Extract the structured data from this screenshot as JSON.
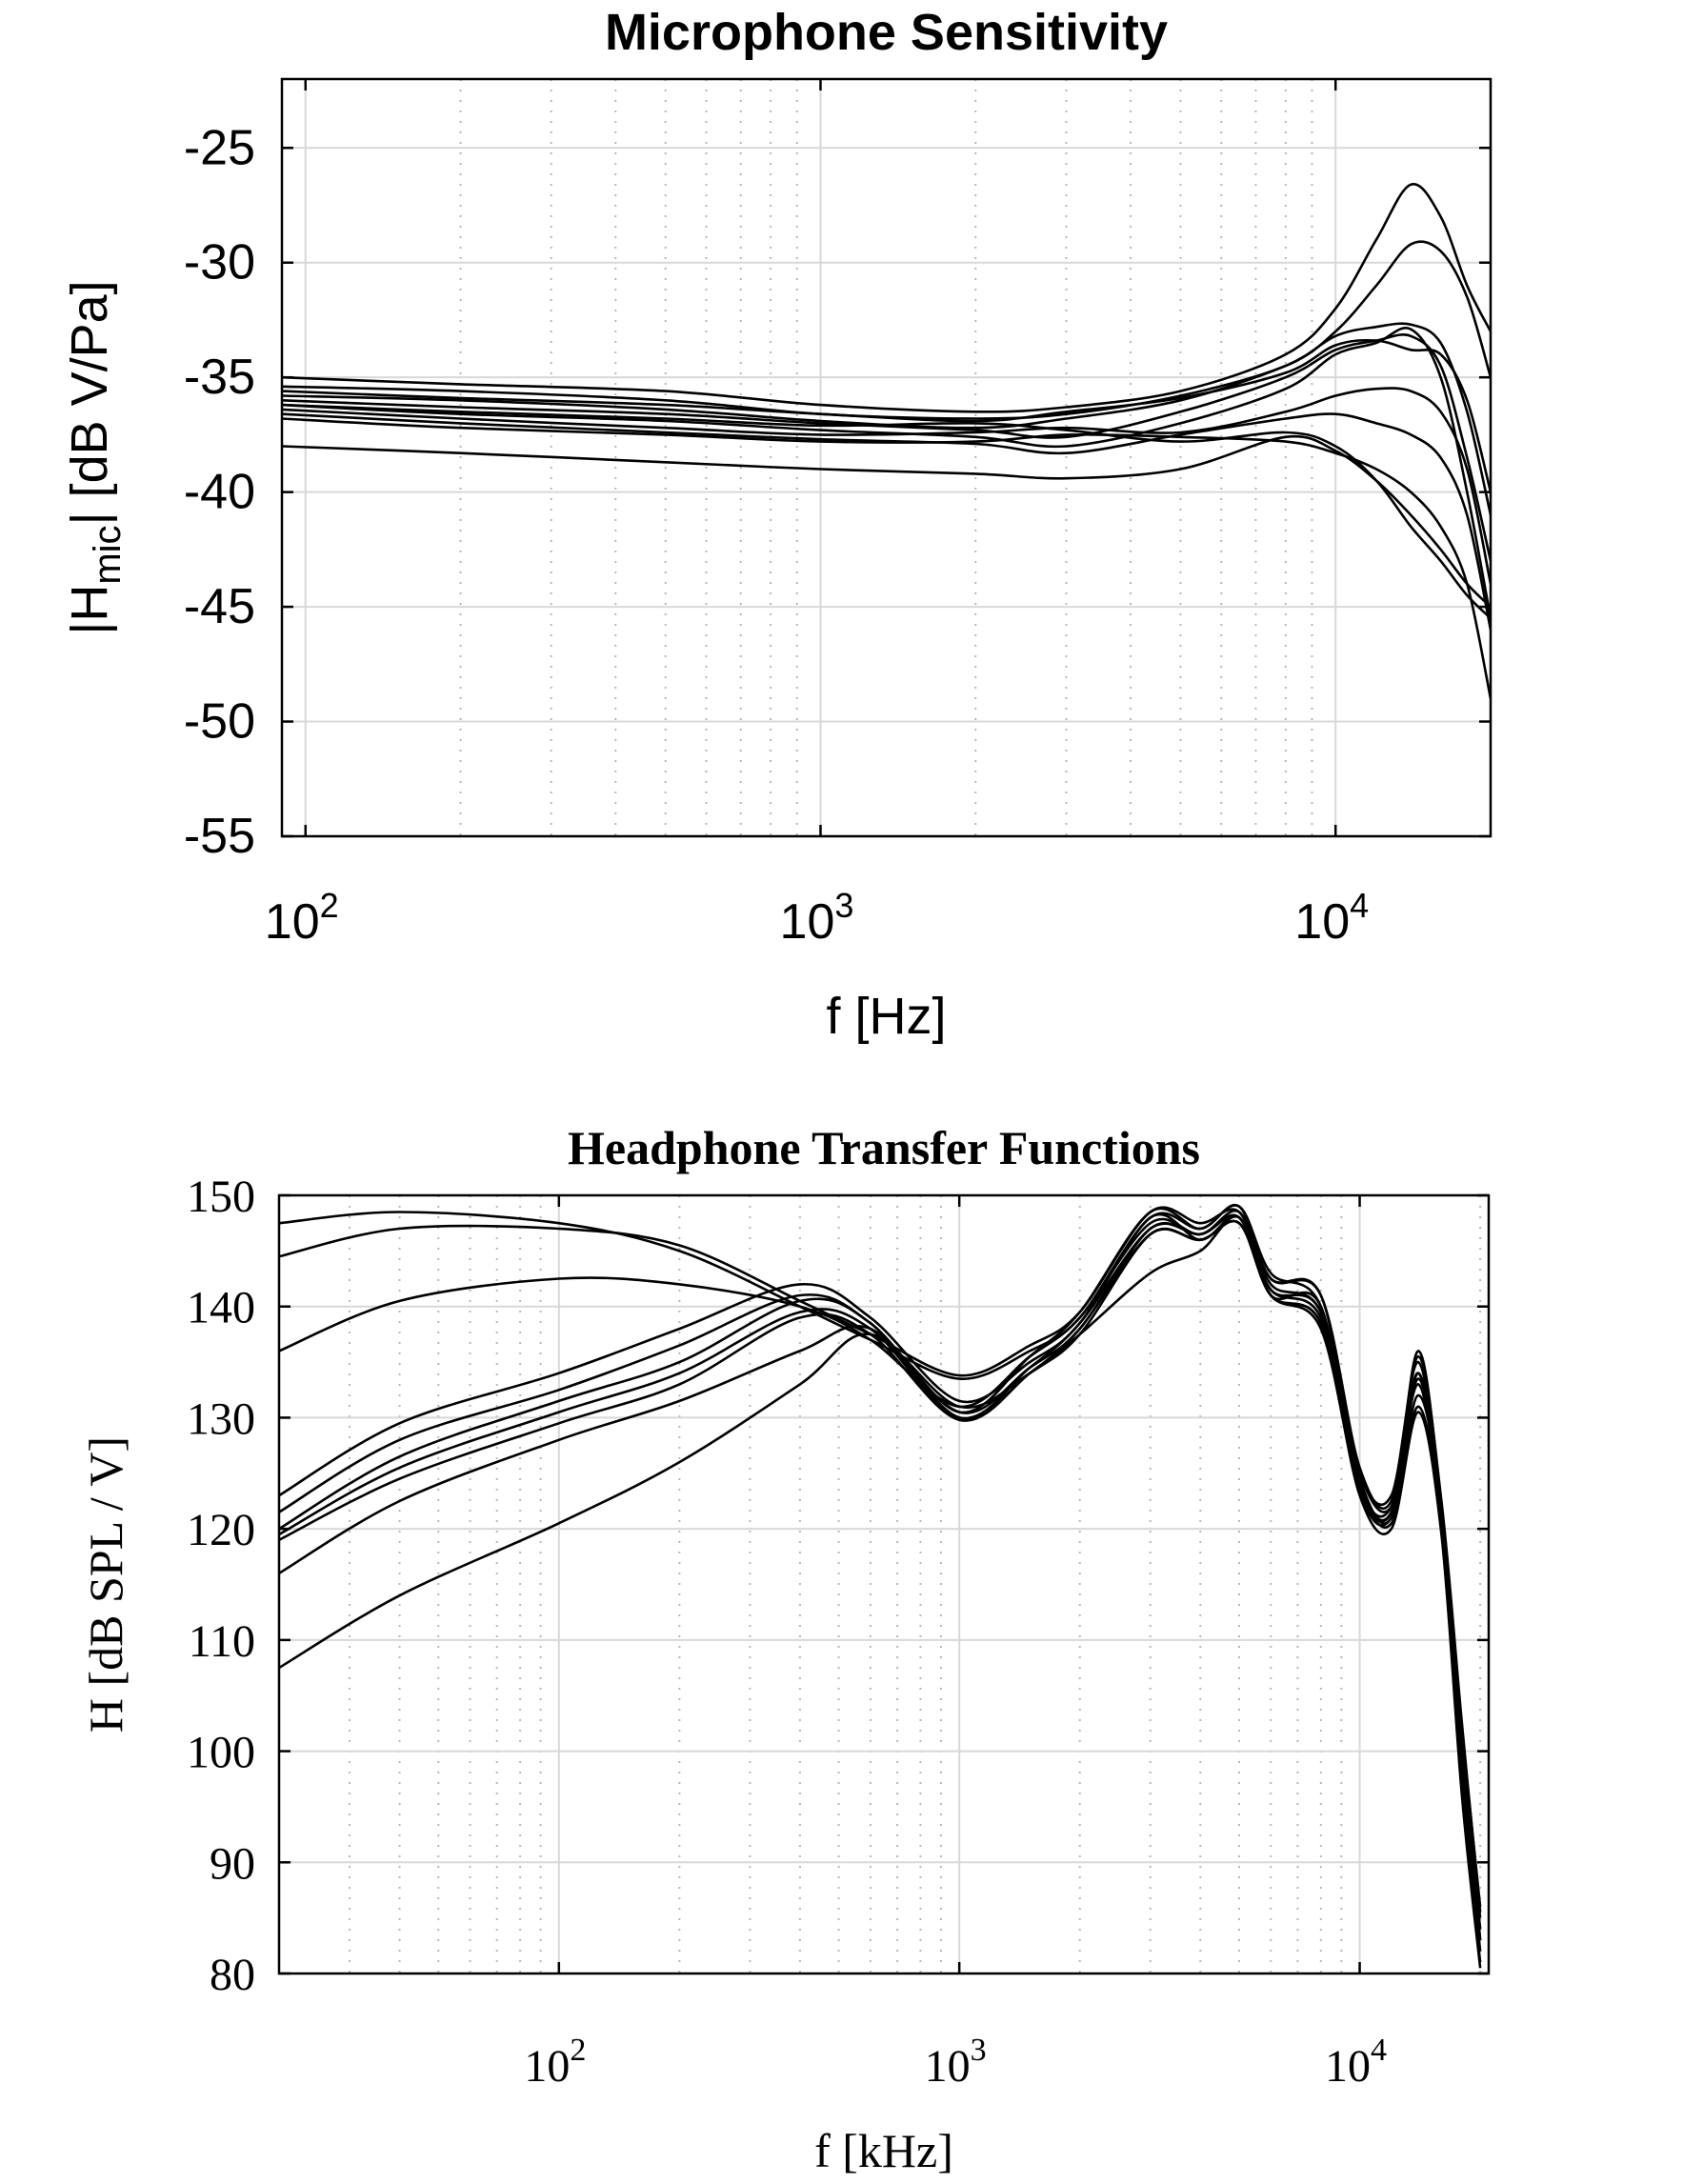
{
  "chart_data": [
    {
      "type": "line",
      "title": "Microphone Sensitivity",
      "xlabel": "f [Hz]",
      "ylabel_main": "|H",
      "ylabel_sub": "mic",
      "ylabel_rest": "| [dB V/Pa]",
      "xscale": "log",
      "xlim": [
        90,
        20000
      ],
      "ylim": [
        -55,
        -22
      ],
      "grid": true,
      "yticks": [
        -55,
        -50,
        -45,
        -40,
        -35,
        -30,
        -25
      ],
      "ytick_labels": [
        "-55",
        "-50",
        "-45",
        "-40",
        "-35",
        "-30",
        "-25"
      ],
      "xticks": [
        100,
        1000,
        10000
      ],
      "xtick_base": "10",
      "xtick_exponents": [
        "2",
        "3",
        "4"
      ],
      "series": [
        {
          "x": [
            90,
            200,
            500,
            1000,
            2000,
            3000,
            5000,
            8000,
            10000,
            12000,
            14000,
            16000,
            18000,
            20000
          ],
          "y": [
            -35.0,
            -35.3,
            -35.6,
            -36.2,
            -36.5,
            -36.3,
            -35.6,
            -34.0,
            -32.0,
            -29.0,
            -26.6,
            -28.0,
            -31.0,
            -33.0
          ]
        },
        {
          "x": [
            90,
            200,
            500,
            1000,
            2000,
            3000,
            5000,
            8000,
            10000,
            12000,
            14000,
            16000,
            18000,
            20000
          ],
          "y": [
            -35.4,
            -35.6,
            -36.0,
            -36.6,
            -36.8,
            -36.6,
            -35.8,
            -34.5,
            -33.0,
            -31.0,
            -29.2,
            -29.5,
            -31.5,
            -35.0
          ]
        },
        {
          "x": [
            90,
            200,
            500,
            1000,
            2000,
            3000,
            5000,
            8000,
            10000,
            12000,
            14000,
            16000,
            18000,
            20000
          ],
          "y": [
            -35.8,
            -36.0,
            -36.4,
            -36.9,
            -37.2,
            -36.8,
            -36.0,
            -34.5,
            -33.2,
            -32.8,
            -32.7,
            -33.5,
            -36.5,
            -41.0
          ]
        },
        {
          "x": [
            90,
            200,
            500,
            1000,
            2000,
            3000,
            5000,
            8000,
            10000,
            12000,
            14000,
            16000,
            18000,
            20000
          ],
          "y": [
            -36.0,
            -36.3,
            -36.6,
            -37.0,
            -37.3,
            -37.6,
            -36.5,
            -35.0,
            -33.8,
            -33.4,
            -33.2,
            -34.5,
            -38.5,
            -43.0
          ]
        },
        {
          "x": [
            90,
            200,
            500,
            1000,
            2000,
            3000,
            5000,
            8000,
            10000,
            12000,
            14000,
            16000,
            18000,
            20000
          ],
          "y": [
            -36.2,
            -36.6,
            -36.9,
            -37.3,
            -37.6,
            -38.0,
            -37.0,
            -35.5,
            -34.0,
            -33.5,
            -32.9,
            -35.0,
            -40.0,
            -45.5
          ]
        },
        {
          "x": [
            90,
            200,
            500,
            1000,
            2000,
            3000,
            5000,
            8000,
            10000,
            12000,
            14000,
            16000,
            18000,
            20000
          ],
          "y": [
            -36.4,
            -36.8,
            -37.2,
            -37.5,
            -37.4,
            -37.2,
            -37.4,
            -36.5,
            -35.8,
            -35.5,
            -35.6,
            -36.5,
            -39.0,
            -44.0
          ]
        },
        {
          "x": [
            90,
            200,
            500,
            1000,
            2000,
            3000,
            5000,
            8000,
            10000,
            12000,
            14000,
            16000,
            18000,
            20000
          ],
          "y": [
            -36.6,
            -37.0,
            -37.4,
            -37.7,
            -37.9,
            -38.3,
            -37.5,
            -36.8,
            -36.6,
            -37.0,
            -37.5,
            -38.5,
            -41.0,
            -46.0
          ]
        },
        {
          "x": [
            90,
            200,
            500,
            1000,
            2000,
            3000,
            5000,
            8000,
            10000,
            12000,
            14000,
            16000,
            18000,
            20000
          ],
          "y": [
            -36.8,
            -37.2,
            -37.5,
            -37.8,
            -37.8,
            -37.5,
            -37.6,
            -37.8,
            -38.3,
            -39.0,
            -40.0,
            -41.5,
            -44.0,
            -49.0
          ]
        },
        {
          "x": [
            90,
            200,
            500,
            1000,
            2000,
            3000,
            5000,
            8000,
            10000,
            12000,
            14000,
            16000,
            18000,
            20000
          ],
          "y": [
            -36.2,
            -36.5,
            -36.8,
            -37.1,
            -37.0,
            -37.3,
            -37.8,
            -37.4,
            -38.0,
            -39.5,
            -41.5,
            -43.0,
            -44.5,
            -45.5
          ]
        },
        {
          "x": [
            90,
            200,
            500,
            1000,
            2000,
            3000,
            5000,
            8000,
            10000,
            12000,
            14000,
            16000,
            18000,
            20000
          ],
          "y": [
            -38.0,
            -38.3,
            -38.7,
            -39.0,
            -39.2,
            -39.4,
            -39.0,
            -37.6,
            -38.2,
            -39.5,
            -41.0,
            -42.5,
            -44.0,
            -45.0
          ]
        },
        {
          "x": [
            90,
            200,
            500,
            1000,
            2000,
            3000,
            5000,
            8000,
            10000,
            12000,
            14000,
            16000,
            18000,
            20000
          ],
          "y": [
            -35.6,
            -35.9,
            -36.2,
            -36.6,
            -36.9,
            -36.5,
            -35.9,
            -34.8,
            -33.6,
            -33.4,
            -33.8,
            -34.0,
            -36.0,
            -40.0
          ]
        }
      ]
    },
    {
      "type": "line",
      "title": "Headphone Transfer Functions",
      "xlabel": "f [kHz]",
      "ylabel": "H [dB SPL / V]",
      "xscale": "log",
      "xlim": [
        20,
        21000
      ],
      "ylim": [
        80,
        150
      ],
      "grid": true,
      "yticks": [
        80,
        90,
        100,
        110,
        120,
        130,
        140,
        150
      ],
      "ytick_labels": [
        "80",
        "90",
        "100",
        "110",
        "120",
        "130",
        "140",
        "150"
      ],
      "xticks": [
        100,
        1000,
        10000
      ],
      "xtick_base": "10",
      "xtick_exponents": [
        "2",
        "3",
        "4"
      ],
      "series": [
        {
          "x": [
            20,
            40,
            100,
            200,
            400,
            600,
            1000,
            1500,
            2000,
            3000,
            4000,
            5000,
            6000,
            8000,
            10000,
            12000,
            14000,
            16000,
            18000,
            20000
          ],
          "y": [
            147.5,
            148.5,
            147.5,
            145.0,
            140.0,
            137.0,
            133.5,
            136.0,
            139.0,
            148.0,
            147.0,
            149.0,
            143.0,
            140.0,
            124.0,
            122.0,
            134.0,
            120.0,
            100.0,
            85.0
          ]
        },
        {
          "x": [
            20,
            40,
            100,
            200,
            400,
            600,
            1000,
            1500,
            2000,
            3000,
            4000,
            5000,
            6000,
            8000,
            10000,
            12000,
            14000,
            16000,
            18000,
            20000
          ],
          "y": [
            144.5,
            147.0,
            147.0,
            145.5,
            140.5,
            137.5,
            133.8,
            136.5,
            139.5,
            148.5,
            147.5,
            148.5,
            142.0,
            139.5,
            125.0,
            123.0,
            135.0,
            121.0,
            98.0,
            84.0
          ]
        },
        {
          "x": [
            20,
            40,
            100,
            200,
            400,
            600,
            1000,
            1500,
            2000,
            3000,
            4000,
            5000,
            6000,
            8000,
            10000,
            12000,
            14000,
            16000,
            18000,
            20000
          ],
          "y": [
            136.0,
            140.5,
            142.5,
            142.0,
            140.0,
            137.0,
            131.0,
            135.5,
            139.0,
            147.5,
            146.5,
            148.5,
            142.5,
            141.0,
            124.5,
            121.5,
            136.0,
            122.0,
            102.0,
            86.0
          ]
        },
        {
          "x": [
            20,
            40,
            100,
            200,
            400,
            600,
            1000,
            1500,
            2000,
            3000,
            4000,
            5000,
            6000,
            8000,
            10000,
            12000,
            14000,
            16000,
            18000,
            20000
          ],
          "y": [
            123.0,
            129.5,
            134.0,
            138.0,
            142.0,
            139.0,
            131.5,
            135.0,
            138.5,
            148.0,
            146.0,
            148.0,
            141.5,
            139.0,
            125.0,
            122.0,
            133.0,
            120.5,
            101.0,
            83.0
          ]
        },
        {
          "x": [
            20,
            40,
            100,
            200,
            400,
            600,
            1000,
            1500,
            2000,
            3000,
            4000,
            5000,
            6000,
            8000,
            10000,
            12000,
            14000,
            16000,
            18000,
            20000
          ],
          "y": [
            121.5,
            128.0,
            132.5,
            136.5,
            141.0,
            138.5,
            130.5,
            134.5,
            138.0,
            147.0,
            146.5,
            148.0,
            141.0,
            140.0,
            123.5,
            121.0,
            132.0,
            121.5,
            99.0,
            82.0
          ]
        },
        {
          "x": [
            20,
            40,
            100,
            200,
            400,
            600,
            1000,
            1500,
            2000,
            3000,
            4000,
            5000,
            6000,
            8000,
            10000,
            12000,
            14000,
            16000,
            18000,
            20000
          ],
          "y": [
            120.0,
            126.5,
            131.5,
            135.0,
            140.5,
            138.5,
            130.0,
            134.0,
            137.5,
            146.5,
            146.0,
            147.5,
            141.0,
            138.5,
            124.0,
            120.5,
            131.0,
            120.0,
            97.0,
            81.0
          ]
        },
        {
          "x": [
            20,
            40,
            100,
            200,
            400,
            600,
            1000,
            1500,
            2000,
            3000,
            4000,
            5000,
            6000,
            8000,
            10000,
            12000,
            14000,
            16000,
            18000,
            20000
          ],
          "y": [
            119.5,
            125.5,
            130.5,
            134.0,
            139.5,
            138.0,
            130.0,
            134.5,
            138.5,
            147.0,
            146.5,
            148.0,
            141.5,
            139.5,
            124.5,
            121.0,
            133.5,
            121.0,
            100.0,
            83.0
          ]
        },
        {
          "x": [
            20,
            40,
            100,
            200,
            400,
            600,
            1000,
            1500,
            2000,
            3000,
            4000,
            5000,
            6000,
            8000,
            10000,
            12000,
            14000,
            16000,
            18000,
            20000
          ],
          "y": [
            119.0,
            124.5,
            129.5,
            133.0,
            139.0,
            137.5,
            129.8,
            134.0,
            138.0,
            146.5,
            146.0,
            147.5,
            141.0,
            138.0,
            123.0,
            120.0,
            130.5,
            119.5,
            96.0,
            80.5
          ]
        },
        {
          "x": [
            20,
            40,
            100,
            200,
            400,
            600,
            1000,
            1500,
            2000,
            3000,
            4000,
            5000,
            6000,
            8000,
            10000,
            12000,
            14000,
            16000,
            18000,
            20000
          ],
          "y": [
            116.0,
            122.5,
            128.0,
            131.5,
            136.0,
            138.0,
            130.5,
            135.5,
            139.5,
            148.5,
            147.0,
            149.0,
            142.5,
            141.0,
            125.5,
            122.5,
            135.5,
            122.5,
            102.5,
            85.5
          ]
        },
        {
          "x": [
            20,
            40,
            100,
            200,
            400,
            600,
            1000,
            1500,
            2000,
            3000,
            4000,
            5000,
            6000,
            8000,
            10000,
            12000,
            14000,
            16000,
            18000,
            20000
          ],
          "y": [
            107.5,
            114.0,
            120.5,
            126.0,
            133.0,
            137.5,
            131.0,
            134.0,
            137.5,
            143.0,
            145.0,
            148.0,
            141.0,
            138.5,
            124.0,
            121.5,
            134.0,
            121.0,
            100.0,
            84.0
          ]
        }
      ]
    }
  ]
}
